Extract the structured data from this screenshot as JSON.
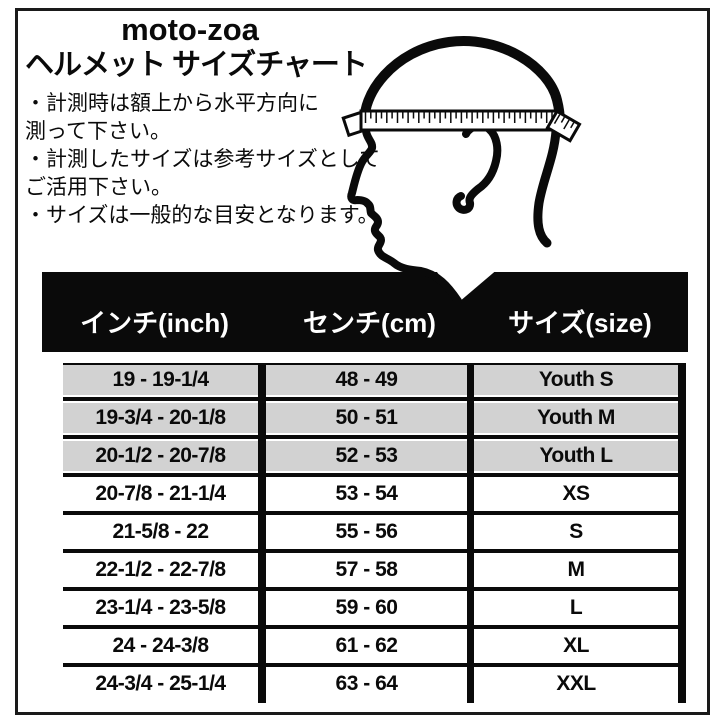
{
  "header": {
    "brand": "moto-zoa",
    "title": "ヘルメット サイズチャート",
    "notes": [
      "・計測時は額上から水平方向に",
      "測って下さい。",
      "・計測したサイズは参考サイズとして",
      "ご活用下さい。",
      "・サイズは一般的な目安となります。"
    ]
  },
  "illustration": {
    "label": "head profile with measuring tape"
  },
  "size_table": {
    "columns": [
      {
        "key": "inch",
        "label": "インチ(inch)"
      },
      {
        "key": "cm",
        "label": "センチ(cm)"
      },
      {
        "key": "size",
        "label": "サイズ(size)"
      }
    ],
    "rows": [
      {
        "inch": "19 - 19-1/4",
        "cm": "48 - 49",
        "size": "Youth S",
        "highlighted": true
      },
      {
        "inch": "19-3/4 - 20-1/8",
        "cm": "50 - 51",
        "size": "Youth M",
        "highlighted": true
      },
      {
        "inch": "20-1/2 - 20-7/8",
        "cm": "52 - 53",
        "size": "Youth L",
        "highlighted": true
      },
      {
        "inch": "20-7/8 - 21-1/4",
        "cm": "53 - 54",
        "size": "XS",
        "highlighted": false
      },
      {
        "inch": "21-5/8 - 22",
        "cm": "55 - 56",
        "size": "S",
        "highlighted": false
      },
      {
        "inch": "22-1/2 - 22-7/8",
        "cm": "57 - 58",
        "size": "M",
        "highlighted": false
      },
      {
        "inch": "23-1/4 - 23-5/8",
        "cm": "59 - 60",
        "size": "L",
        "highlighted": false
      },
      {
        "inch": "24 - 24-3/8",
        "cm": "61 - 62",
        "size": "XL",
        "highlighted": false
      },
      {
        "inch": "24-3/4 - 25-1/4",
        "cm": "63 - 64",
        "size": "XXL",
        "highlighted": false
      }
    ]
  },
  "colors": {
    "ink": "#0a0a0a",
    "header_band_bg": "#0a0a0a",
    "header_band_text": "#ffffff",
    "row_highlight_bg": "#d2d2d2",
    "row_default_bg": "#ffffff"
  }
}
